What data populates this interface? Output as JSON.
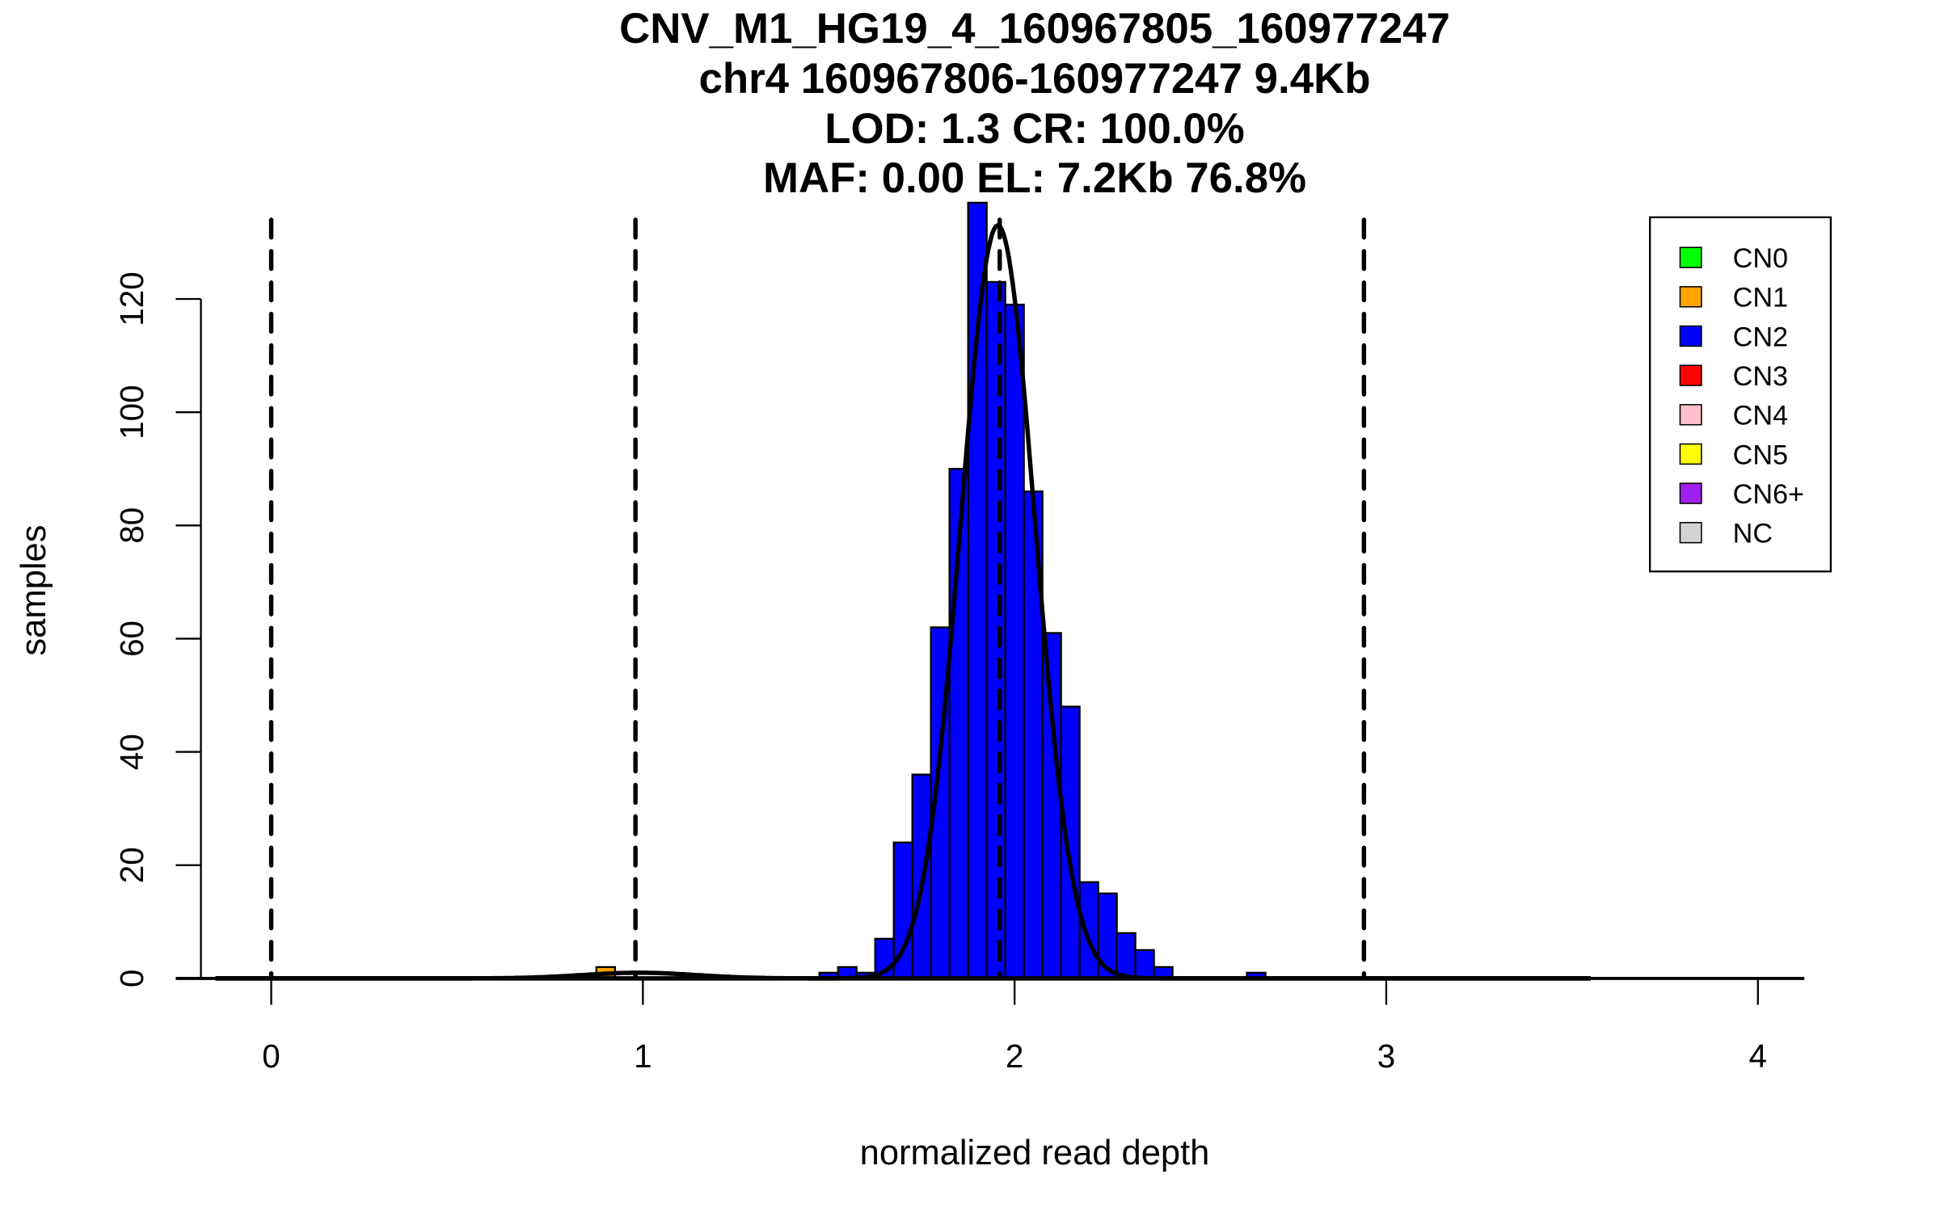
{
  "chart_data": {
    "type": "bar",
    "title_lines": [
      "CNV_M1_HG19_4_160967805_160977247",
      "chr4 160967806-160977247 9.4Kb",
      "LOD: 1.3 CR: 100.0%",
      "MAF: 0.00 EL: 7.2Kb 76.8%"
    ],
    "xlabel": "normalized read depth",
    "ylabel": "samples",
    "xlim": [
      -0.17,
      4.12
    ],
    "ylim": [
      0,
      138
    ],
    "xticks": [
      "0",
      "1",
      "2",
      "3",
      "4"
    ],
    "yticks": [
      "0",
      "20",
      "40",
      "60",
      "80",
      "100",
      "120"
    ],
    "bin_width": 0.05,
    "bins": [
      {
        "x0": 0.875,
        "count": 2,
        "cn": "CN1"
      },
      {
        "x0": 1.475,
        "count": 1,
        "cn": "CN2"
      },
      {
        "x0": 1.525,
        "count": 2,
        "cn": "CN2"
      },
      {
        "x0": 1.575,
        "count": 1,
        "cn": "CN2"
      },
      {
        "x0": 1.625,
        "count": 7,
        "cn": "CN2"
      },
      {
        "x0": 1.675,
        "count": 24,
        "cn": "CN2"
      },
      {
        "x0": 1.725,
        "count": 36,
        "cn": "CN2"
      },
      {
        "x0": 1.775,
        "count": 62,
        "cn": "CN2"
      },
      {
        "x0": 1.825,
        "count": 90,
        "cn": "CN2"
      },
      {
        "x0": 1.875,
        "count": 137,
        "cn": "CN2"
      },
      {
        "x0": 1.925,
        "count": 123,
        "cn": "CN2"
      },
      {
        "x0": 1.975,
        "count": 119,
        "cn": "CN2"
      },
      {
        "x0": 2.025,
        "count": 86,
        "cn": "CN2"
      },
      {
        "x0": 2.075,
        "count": 61,
        "cn": "CN2"
      },
      {
        "x0": 2.125,
        "count": 48,
        "cn": "CN2"
      },
      {
        "x0": 2.175,
        "count": 17,
        "cn": "CN2"
      },
      {
        "x0": 2.225,
        "count": 15,
        "cn": "CN2"
      },
      {
        "x0": 2.275,
        "count": 8,
        "cn": "CN2"
      },
      {
        "x0": 2.325,
        "count": 5,
        "cn": "CN2"
      },
      {
        "x0": 2.375,
        "count": 2,
        "cn": "CN2"
      },
      {
        "x0": 2.625,
        "count": 1,
        "cn": "CN2"
      }
    ],
    "dashed_lines_x": [
      0.0,
      0.98,
      1.96,
      2.94
    ],
    "fits": [
      {
        "mean": 1.955,
        "sd": 0.1,
        "peak": 133
      },
      {
        "mean": 0.99,
        "sd": 0.15,
        "peak": 1
      }
    ],
    "legend": {
      "placement": "top-right",
      "entries": [
        {
          "label": "CN0",
          "color": "#00ff00"
        },
        {
          "label": "CN1",
          "color": "#ffa500"
        },
        {
          "label": "CN2",
          "color": "#0000ff"
        },
        {
          "label": "CN3",
          "color": "#ff0000"
        },
        {
          "label": "CN4",
          "color": "#ffc0cb"
        },
        {
          "label": "CN5",
          "color": "#ffff00"
        },
        {
          "label": "CN6+",
          "color": "#a020f0"
        },
        {
          "label": "NC",
          "color": "#d3d3d3"
        }
      ]
    }
  }
}
